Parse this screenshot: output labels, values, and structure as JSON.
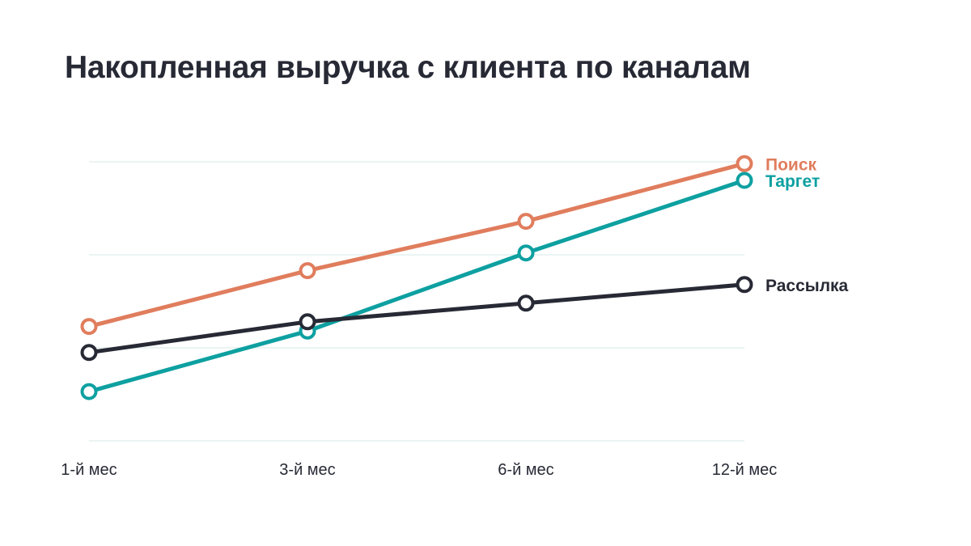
{
  "chart_data": {
    "type": "line",
    "title": "Накопленная выручка с клиента по каналам",
    "categories": [
      "1-й мес",
      "3-й мес",
      "6-й мес",
      "12-й мес"
    ],
    "grid": true,
    "ylim": [
      0,
      300
    ],
    "series": [
      {
        "name": "Поиск",
        "values": [
          123,
          183,
          236,
          298
        ],
        "color": "#e07d5d"
      },
      {
        "name": "Таргет",
        "values": [
          53,
          118,
          202,
          280
        ],
        "color": "#0ea0a1"
      },
      {
        "name": "Рассылка",
        "values": [
          95,
          128,
          148,
          168
        ],
        "color": "#272a35"
      }
    ]
  }
}
